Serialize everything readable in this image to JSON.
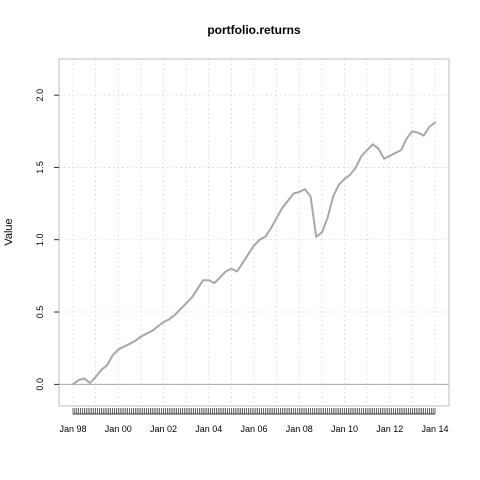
{
  "chart_data": {
    "type": "line",
    "title": "portfolio.returns",
    "xlabel": "",
    "ylabel": "Value",
    "ylim": [
      -0.15,
      2.25
    ],
    "grid": true,
    "legend": "none",
    "baseline": 0,
    "y_ticks": [
      0.0,
      0.5,
      1.0,
      1.5,
      2.0
    ],
    "y_tick_labels": [
      "0.0",
      "0.5",
      "1.0",
      "1.5",
      "2.0"
    ],
    "x_ticks": [
      "1998-01",
      "2000-01",
      "2002-01",
      "2004-01",
      "2006-01",
      "2008-01",
      "2010-01",
      "2012-01",
      "2014-01"
    ],
    "x_tick_labels": [
      "Jan 98",
      "Jan 00",
      "Jan 02",
      "Jan 04",
      "Jan 06",
      "Jan 08",
      "Jan 10",
      "Jan 12",
      "Jan 14"
    ],
    "colors": {
      "line": "#a8a8a8",
      "grid": "#d3d3d3",
      "frame": "#bebebe",
      "baseline": "#a8a8a8"
    },
    "series": [
      {
        "x": [
          "1998-01",
          "1998-04",
          "1998-07",
          "1998-10",
          "1999-01",
          "1999-04",
          "1999-07",
          "1999-10",
          "2000-01",
          "2000-04",
          "2000-07",
          "2000-10",
          "2001-01",
          "2001-04",
          "2001-07",
          "2001-10",
          "2002-01",
          "2002-04",
          "2002-07",
          "2002-10",
          "2003-01",
          "2003-04",
          "2003-07",
          "2003-10",
          "2004-01",
          "2004-04",
          "2004-07",
          "2004-10",
          "2005-01",
          "2005-04",
          "2005-07",
          "2005-10",
          "2006-01",
          "2006-04",
          "2006-07",
          "2006-10",
          "2007-01",
          "2007-04",
          "2007-07",
          "2007-10",
          "2008-01",
          "2008-04",
          "2008-07",
          "2008-10",
          "2009-01",
          "2009-04",
          "2009-07",
          "2009-10",
          "2010-01",
          "2010-04",
          "2010-07",
          "2010-10",
          "2011-01",
          "2011-04",
          "2011-07",
          "2011-10",
          "2012-01",
          "2012-04",
          "2012-07",
          "2012-10",
          "2013-01",
          "2013-04",
          "2013-07",
          "2013-10",
          "2014-01"
        ],
        "values": [
          0.0,
          0.03,
          0.04,
          0.01,
          0.05,
          0.1,
          0.13,
          0.2,
          0.24,
          0.26,
          0.28,
          0.3,
          0.33,
          0.35,
          0.37,
          0.4,
          0.43,
          0.45,
          0.48,
          0.52,
          0.56,
          0.6,
          0.66,
          0.72,
          0.72,
          0.7,
          0.74,
          0.78,
          0.8,
          0.78,
          0.84,
          0.9,
          0.96,
          1.0,
          1.02,
          1.08,
          1.15,
          1.22,
          1.27,
          1.32,
          1.33,
          1.35,
          1.3,
          1.02,
          1.05,
          1.15,
          1.3,
          1.38,
          1.42,
          1.45,
          1.5,
          1.58,
          1.62,
          1.66,
          1.63,
          1.56,
          1.58,
          1.6,
          1.62,
          1.7,
          1.75,
          1.74,
          1.72,
          1.78,
          1.81
        ]
      }
    ]
  }
}
